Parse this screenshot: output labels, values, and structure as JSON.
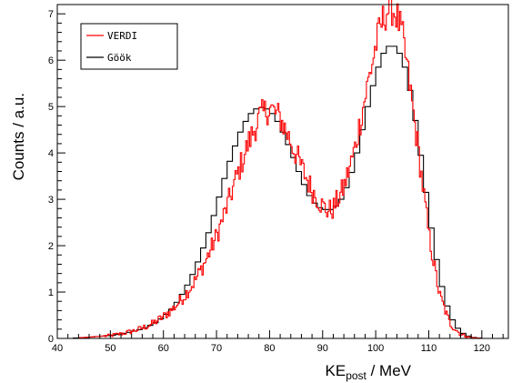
{
  "chart_data": {
    "type": "histogram",
    "xlabel": "KE",
    "xlabel_sub": "post",
    "xlabel_unit": " / MeV",
    "ylabel": "Counts / a.u.",
    "xlim": [
      40,
      125
    ],
    "ylim": [
      0,
      7.2
    ],
    "x_ticks": [
      40,
      50,
      60,
      70,
      80,
      90,
      100,
      110,
      120
    ],
    "y_ticks": [
      0,
      1,
      2,
      3,
      4,
      5,
      6,
      7
    ],
    "grid": false,
    "legend_position": "top-left",
    "series": [
      {
        "name": "VERDI",
        "color": "#ff0000",
        "style": "fine-step",
        "x": [
          40,
          45,
          50,
          52,
          54,
          56,
          58,
          60,
          62,
          64,
          66,
          68,
          70,
          72,
          74,
          76,
          78,
          80,
          82,
          84,
          86,
          88,
          90,
          91,
          92,
          94,
          96,
          98,
          100,
          101,
          102,
          103,
          104,
          105,
          106,
          108,
          110,
          112,
          114,
          116,
          118,
          120,
          122,
          124
        ],
        "y": [
          0.0,
          0.02,
          0.06,
          0.1,
          0.15,
          0.22,
          0.32,
          0.47,
          0.66,
          0.92,
          1.25,
          1.68,
          2.2,
          2.85,
          3.55,
          4.2,
          4.75,
          4.98,
          4.75,
          4.25,
          3.7,
          3.2,
          2.85,
          2.75,
          2.8,
          3.25,
          4.05,
          5.2,
          6.3,
          6.75,
          7.05,
          7.15,
          6.95,
          6.55,
          5.8,
          4.1,
          2.25,
          0.95,
          0.32,
          0.09,
          0.02,
          0.0,
          0.0,
          0.0
        ]
      },
      {
        "name": "Göök",
        "color": "#000000",
        "style": "step",
        "x": [
          40,
          41,
          42,
          43,
          44,
          45,
          46,
          47,
          48,
          49,
          50,
          51,
          52,
          53,
          54,
          55,
          56,
          57,
          58,
          59,
          60,
          61,
          62,
          63,
          64,
          65,
          66,
          67,
          68,
          69,
          70,
          71,
          72,
          73,
          74,
          75,
          76,
          77,
          78,
          79,
          80,
          81,
          82,
          83,
          84,
          85,
          86,
          87,
          88,
          89,
          90,
          91,
          92,
          93,
          94,
          95,
          96,
          97,
          98,
          99,
          100,
          101,
          102,
          103,
          104,
          105,
          106,
          107,
          108,
          109,
          110,
          111,
          112,
          113,
          114,
          115,
          116,
          117,
          118,
          119,
          120,
          121,
          122,
          123,
          124
        ],
        "y": [
          0.0,
          0.0,
          0.0,
          0.01,
          0.01,
          0.02,
          0.03,
          0.04,
          0.05,
          0.06,
          0.07,
          0.09,
          0.11,
          0.13,
          0.16,
          0.19,
          0.23,
          0.28,
          0.34,
          0.42,
          0.52,
          0.63,
          0.78,
          0.95,
          1.15,
          1.38,
          1.65,
          1.95,
          2.28,
          2.65,
          3.05,
          3.45,
          3.82,
          4.15,
          4.45,
          4.68,
          4.85,
          4.95,
          4.98,
          4.95,
          4.85,
          4.68,
          4.45,
          4.18,
          3.9,
          3.6,
          3.32,
          3.08,
          2.92,
          2.82,
          2.78,
          2.78,
          2.85,
          3.0,
          3.25,
          3.58,
          4.0,
          4.5,
          5.0,
          5.45,
          5.85,
          6.15,
          6.3,
          6.3,
          6.15,
          5.85,
          5.35,
          4.7,
          3.95,
          3.15,
          2.38,
          1.7,
          1.12,
          0.7,
          0.4,
          0.22,
          0.11,
          0.05,
          0.02,
          0.01,
          0.0,
          0.0,
          0.0,
          0.0,
          0.0
        ]
      }
    ]
  }
}
